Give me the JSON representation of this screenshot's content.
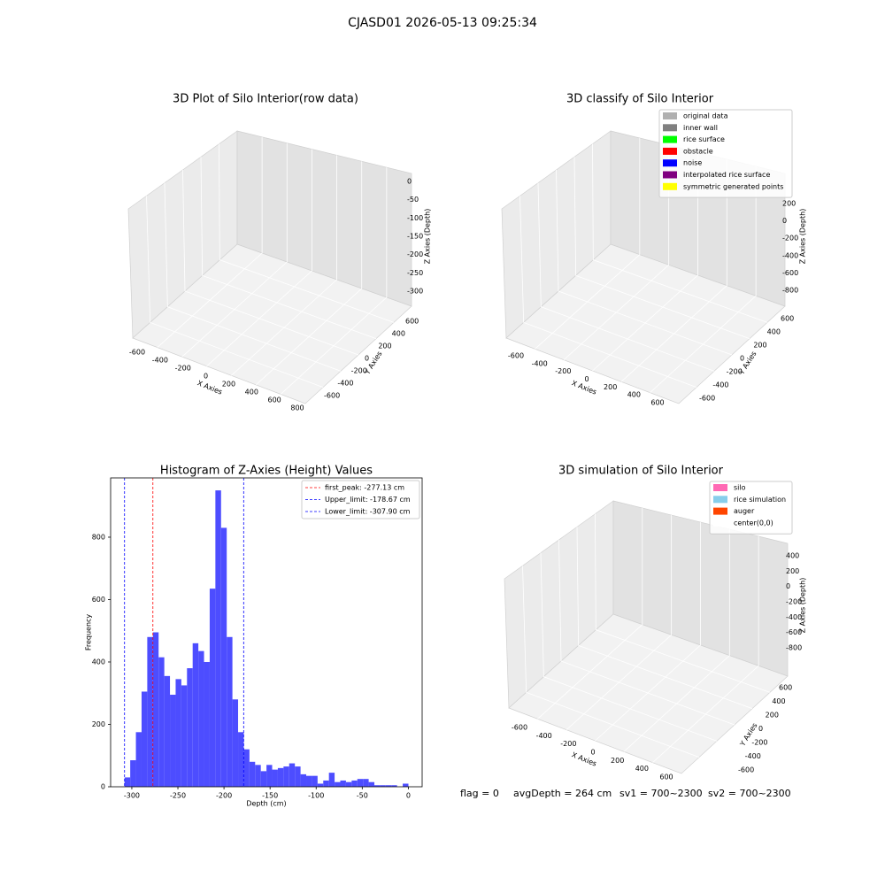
{
  "title": "CJASD01 2026-05-13 09:25:34",
  "footer": [
    "flag = 0",
    "avgDepth = 264 cm",
    "sv1 = 700~2300",
    "sv2 = 700~2300"
  ],
  "chart_data": [
    {
      "type": "scatter3d",
      "title": "3D Plot of Silo Interior(row data)",
      "xlabel": "X Axies",
      "ylabel": "Y Axies",
      "zlabel": "Z Axies (Depth)",
      "xticks": [
        -600,
        -400,
        -200,
        0,
        200,
        400,
        600,
        800
      ],
      "yticks": [
        -600,
        -400,
        -200,
        0,
        200,
        400,
        600
      ],
      "zticks": [
        0,
        -50,
        -100,
        -150,
        -200,
        -250,
        -300
      ]
    },
    {
      "type": "scatter3d",
      "title": "3D classify of Silo Interior",
      "xlabel": "X Axies",
      "ylabel": "Y Axies",
      "zlabel": "Z Axies (Depth)",
      "xticks": [
        -600,
        -400,
        -200,
        0,
        200,
        400,
        600
      ],
      "yticks": [
        -600,
        -400,
        -200,
        0,
        200,
        400,
        600
      ],
      "zticks": [
        200,
        0,
        -200,
        -400,
        -600,
        -800
      ],
      "series": [
        {
          "name": "original data",
          "color": "#b0b0b0"
        },
        {
          "name": "inner wall",
          "color": "#808080"
        },
        {
          "name": "rice surface",
          "color": "#00ff00"
        },
        {
          "name": "obstacle",
          "color": "#ff0000"
        },
        {
          "name": "noise",
          "color": "#0000ff"
        },
        {
          "name": "interpolated rice surface",
          "color": "#800080"
        },
        {
          "name": "symmetric generated points",
          "color": "#ffff00"
        }
      ]
    },
    {
      "type": "histogram",
      "title": "Histogram of Z-Axies (Height) Values",
      "xlabel": "Depth (cm)",
      "ylabel": "Frequency",
      "color": "#4d4dff",
      "bins": [
        -307.9,
        -301.74,
        -295.58,
        -289.42,
        -283.26,
        -277.1,
        -270.94,
        -264.78,
        -258.62,
        -252.46,
        -246.3,
        -240.14,
        -233.98,
        -227.82,
        -221.66,
        -215.5,
        -209.34,
        -203.18,
        -197.02,
        -190.86,
        -184.7,
        -178.54,
        -172.38,
        -166.22,
        -160.06,
        -153.9,
        -147.74,
        -141.58,
        -135.42,
        -129.26,
        -123.1,
        -116.94,
        -110.78,
        -104.62,
        -98.46,
        -92.3,
        -86.14,
        -79.98,
        -73.82,
        -67.66,
        -61.5,
        -55.34,
        -49.18,
        -43.02,
        -36.86,
        -30.7,
        -24.54,
        -18.38,
        -12.22,
        -6.06,
        0.1
      ],
      "values": [
        30,
        85,
        175,
        305,
        480,
        495,
        415,
        355,
        295,
        345,
        325,
        380,
        460,
        435,
        400,
        635,
        950,
        830,
        480,
        280,
        175,
        120,
        80,
        70,
        50,
        70,
        55,
        60,
        65,
        75,
        65,
        40,
        35,
        35,
        10,
        20,
        45,
        15,
        20,
        15,
        20,
        25,
        25,
        15,
        5,
        5,
        5,
        5,
        0,
        10
      ],
      "xlim": [
        -323,
        15
      ],
      "ylim": [
        0,
        990
      ],
      "xticks": [
        -300,
        -250,
        -200,
        -150,
        -100,
        -50,
        0
      ],
      "yticks": [
        0,
        200,
        400,
        600,
        800
      ],
      "lines": [
        {
          "label": "first_peak: -277.13 cm",
          "value": -277.13,
          "color": "#ff0000"
        },
        {
          "label": "Upper_limit: -178.67 cm",
          "value": -178.67,
          "color": "#0000ff"
        },
        {
          "label": "Lower_limit: -307.90 cm",
          "value": -307.9,
          "color": "#0000ff"
        }
      ]
    },
    {
      "type": "scatter3d",
      "title": "3D simulation of Silo Interior",
      "xlabel": "X Axies",
      "ylabel": "Y Axies",
      "zlabel": "Z Axies (Depth)",
      "xticks": [
        -600,
        -400,
        -200,
        0,
        200,
        400,
        600
      ],
      "yticks": [
        -600,
        -400,
        -200,
        0,
        200,
        400,
        600
      ],
      "zticks": [
        400,
        200,
        0,
        -200,
        -400,
        -600,
        -800
      ],
      "series": [
        {
          "name": "silo",
          "color": "#ff69b4"
        },
        {
          "name": "rice simulation",
          "color": "#87ceeb"
        },
        {
          "name": "auger",
          "color": "#ff4500"
        },
        {
          "name": "center(0,0)",
          "color": "#ffffff"
        }
      ]
    }
  ]
}
